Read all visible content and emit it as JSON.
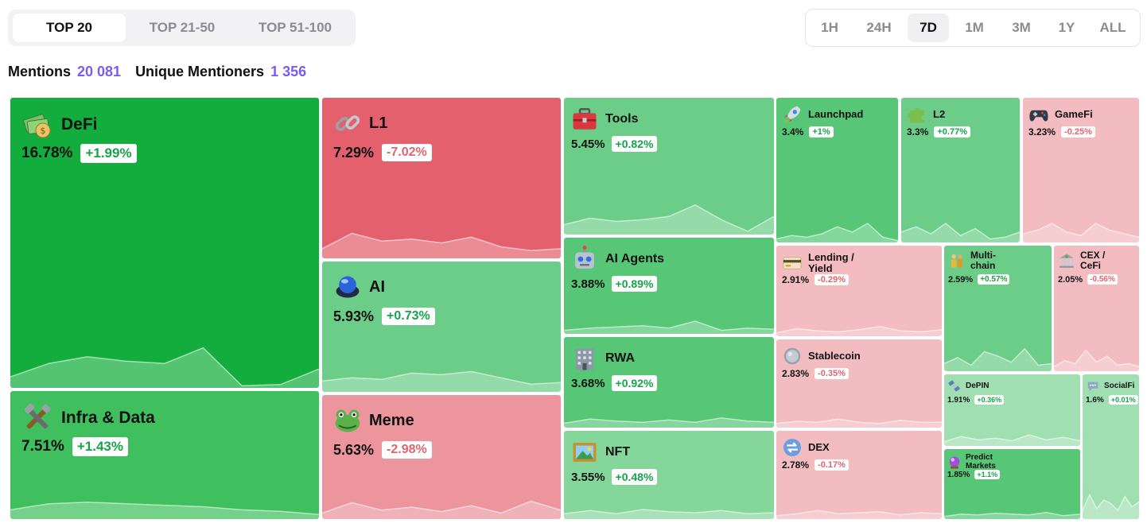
{
  "tabs": [
    {
      "label": "TOP 20",
      "active": true
    },
    {
      "label": "TOP 21-50",
      "active": false
    },
    {
      "label": "TOP 51-100",
      "active": false
    }
  ],
  "ranges": [
    {
      "label": "1H",
      "active": false
    },
    {
      "label": "24H",
      "active": false
    },
    {
      "label": "7D",
      "active": true
    },
    {
      "label": "1M",
      "active": false
    },
    {
      "label": "3M",
      "active": false
    },
    {
      "label": "1Y",
      "active": false
    },
    {
      "label": "ALL",
      "active": false
    }
  ],
  "stats": {
    "mentions_label": "Mentions",
    "mentions_value": "20 081",
    "mentioners_label": "Unique Mentioners",
    "mentioners_value": "1 356"
  },
  "colors": {
    "accent": "#7b5cf0",
    "positive_text": "#16a34a",
    "negative_text": "#e0646f"
  },
  "tiles": [
    {
      "id": "defi",
      "name": "DeFi",
      "icon": "money-bag-icon",
      "share": "16.78%",
      "change": "+1.99%",
      "direction": "up"
    },
    {
      "id": "infra",
      "name": "Infra & Data",
      "icon": "tools-icon",
      "share": "7.51%",
      "change": "+1.43%",
      "direction": "up"
    },
    {
      "id": "l1",
      "name": "L1",
      "icon": "chain-link-icon",
      "share": "7.29%",
      "change": "-7.02%",
      "direction": "down"
    },
    {
      "id": "ai",
      "name": "AI",
      "icon": "orb-button-icon",
      "share": "5.93%",
      "change": "+0.73%",
      "direction": "up"
    },
    {
      "id": "meme",
      "name": "Meme",
      "icon": "frog-icon",
      "share": "5.63%",
      "change": "-2.98%",
      "direction": "down"
    },
    {
      "id": "tools",
      "name": "Tools",
      "icon": "toolbox-icon",
      "share": "5.45%",
      "change": "+0.82%",
      "direction": "up"
    },
    {
      "id": "aiagents",
      "name": "AI Agents",
      "icon": "robot-icon",
      "share": "3.88%",
      "change": "+0.89%",
      "direction": "up"
    },
    {
      "id": "rwa",
      "name": "RWA",
      "icon": "building-icon",
      "share": "3.68%",
      "change": "+0.92%",
      "direction": "up"
    },
    {
      "id": "nft",
      "name": "NFT",
      "icon": "picture-frame-icon",
      "share": "3.55%",
      "change": "+0.48%",
      "direction": "up"
    },
    {
      "id": "launchpad",
      "name": "Launchpad",
      "icon": "rocket-icon",
      "share": "3.4%",
      "change": "+1%",
      "direction": "up"
    },
    {
      "id": "l2",
      "name": "L2",
      "icon": "puzzle-piece-icon",
      "share": "3.3%",
      "change": "+0.77%",
      "direction": "up"
    },
    {
      "id": "gamefi",
      "name": "GameFi",
      "icon": "gamepad-icon",
      "share": "3.23%",
      "change": "-0.25%",
      "direction": "down"
    },
    {
      "id": "lending",
      "name": "Lending / Yield",
      "icon": "credit-card-icon",
      "share": "2.91%",
      "change": "-0.29%",
      "direction": "down"
    },
    {
      "id": "stablecoin",
      "name": "Stablecoin",
      "icon": "coin-icon",
      "share": "2.83%",
      "change": "-0.35%",
      "direction": "down"
    },
    {
      "id": "dex",
      "name": "DEX",
      "icon": "swap-arrows-icon",
      "share": "2.78%",
      "change": "-0.17%",
      "direction": "down"
    },
    {
      "id": "multichain",
      "name": "Multi-chain",
      "icon": "people-icon",
      "share": "2.59%",
      "change": "+0.57%",
      "direction": "up"
    },
    {
      "id": "cex",
      "name": "CEX / CeFi",
      "icon": "bank-icon",
      "share": "2.05%",
      "change": "-0.56%",
      "direction": "down"
    },
    {
      "id": "depin",
      "name": "DePIN",
      "icon": "satellite-icon",
      "share": "1.91%",
      "change": "+0.36%",
      "direction": "up"
    },
    {
      "id": "predict",
      "name": "Predict Markets",
      "icon": "crystal-ball-icon",
      "share": "1.85%",
      "change": "+1.1%",
      "direction": "up"
    },
    {
      "id": "socialfi",
      "name": "SocialFi",
      "icon": "speech-bubble-icon",
      "share": "1.6%",
      "change": "+0.01%",
      "direction": "up"
    }
  ]
}
